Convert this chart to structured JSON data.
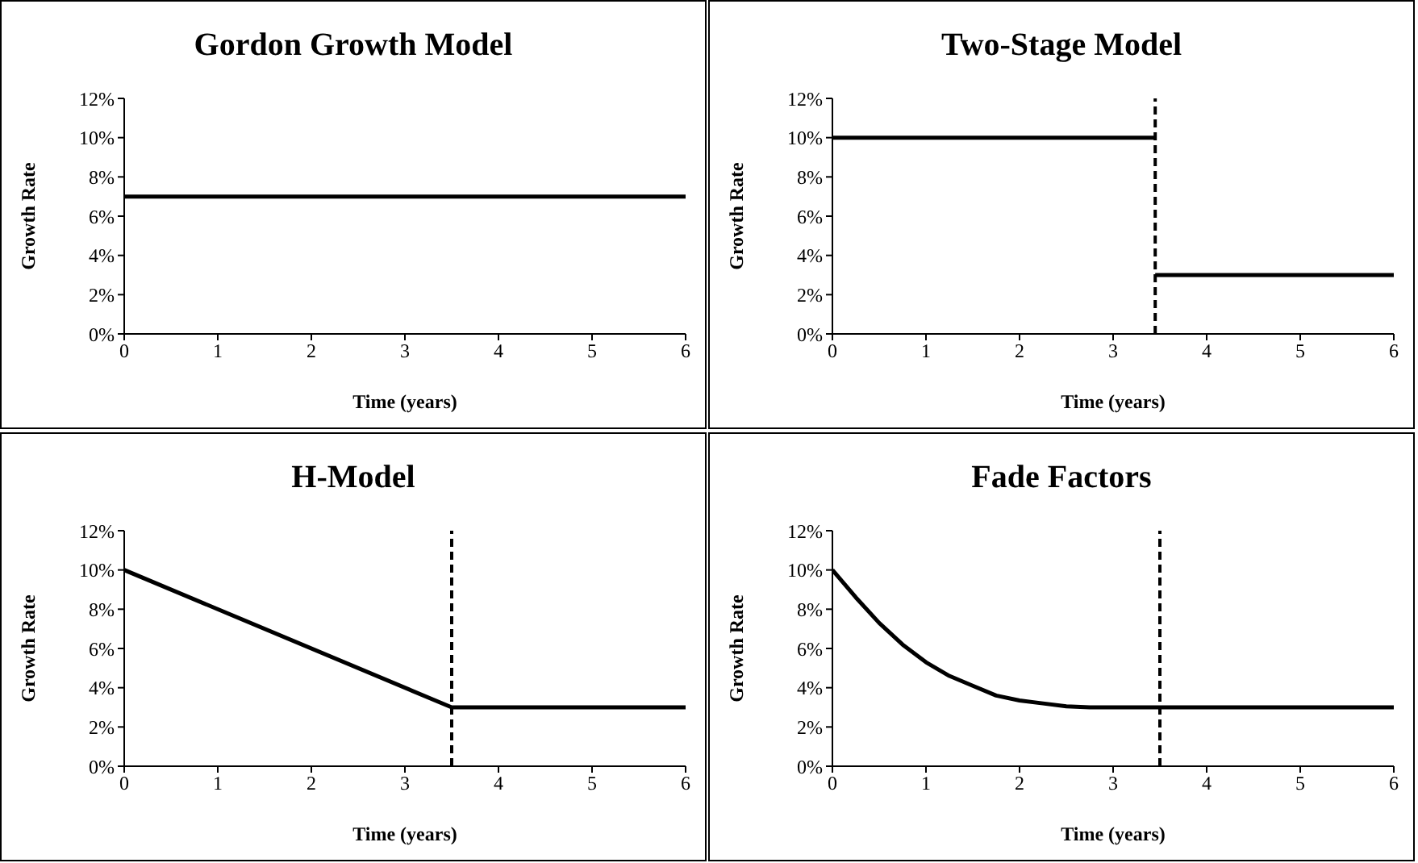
{
  "chart_data": [
    {
      "type": "line",
      "title": "Gordon Growth Model",
      "xlabel": "Time (years)",
      "ylabel": "Growth Rate",
      "xlim": [
        0,
        6
      ],
      "xticks": [
        0,
        1,
        2,
        3,
        4,
        5,
        6
      ],
      "ylim": [
        0,
        12
      ],
      "yticks": [
        {
          "value": 0,
          "label": "0%"
        },
        {
          "value": 2,
          "label": "2%"
        },
        {
          "value": 4,
          "label": "4%"
        },
        {
          "value": 6,
          "label": "6%"
        },
        {
          "value": 8,
          "label": "8%"
        },
        {
          "value": 10,
          "label": "10%"
        },
        {
          "value": 12,
          "label": "12%"
        }
      ],
      "marker": "none",
      "series": [
        {
          "color": "#000000",
          "x": [
            0,
            6
          ],
          "values": [
            7,
            7
          ]
        }
      ]
    },
    {
      "type": "line",
      "title": "Two-Stage Model",
      "xlabel": "Time (years)",
      "ylabel": "Growth Rate",
      "xlim": [
        0,
        6
      ],
      "xticks": [
        0,
        1,
        2,
        3,
        4,
        5,
        6
      ],
      "ylim": [
        0,
        12
      ],
      "yticks": [
        {
          "value": 0,
          "label": "0%"
        },
        {
          "value": 2,
          "label": "2%"
        },
        {
          "value": 4,
          "label": "4%"
        },
        {
          "value": 6,
          "label": "6%"
        },
        {
          "value": 8,
          "label": "8%"
        },
        {
          "value": 10,
          "label": "10%"
        },
        {
          "value": 12,
          "label": "12%"
        }
      ],
      "marker": "none",
      "series": [
        {
          "color": "#000000",
          "x": [
            0,
            3.45
          ],
          "values": [
            10,
            10
          ]
        },
        {
          "color": "#000000",
          "x": [
            3.45,
            6
          ],
          "values": [
            3,
            3
          ]
        }
      ],
      "ref_lines": [
        {
          "axis": "x",
          "value": 3.45,
          "color": "#000000",
          "line_style": "dashed"
        }
      ]
    },
    {
      "type": "line",
      "title": "H-Model",
      "xlabel": "Time (years)",
      "ylabel": "Growth Rate",
      "xlim": [
        0,
        6
      ],
      "xticks": [
        0,
        1,
        2,
        3,
        4,
        5,
        6
      ],
      "ylim": [
        0,
        12
      ],
      "yticks": [
        {
          "value": 0,
          "label": "0%"
        },
        {
          "value": 2,
          "label": "2%"
        },
        {
          "value": 4,
          "label": "4%"
        },
        {
          "value": 6,
          "label": "6%"
        },
        {
          "value": 8,
          "label": "8%"
        },
        {
          "value": 10,
          "label": "10%"
        },
        {
          "value": 12,
          "label": "12%"
        }
      ],
      "marker": "none",
      "series": [
        {
          "color": "#000000",
          "x": [
            0,
            3.5,
            6
          ],
          "values": [
            10,
            3,
            3
          ]
        }
      ],
      "ref_lines": [
        {
          "axis": "x",
          "value": 3.5,
          "color": "#000000",
          "line_style": "dashed"
        }
      ]
    },
    {
      "type": "line",
      "title": "Fade Factors",
      "xlabel": "Time (years)",
      "ylabel": "Growth Rate",
      "xlim": [
        0,
        6
      ],
      "xticks": [
        0,
        1,
        2,
        3,
        4,
        5,
        6
      ],
      "ylim": [
        0,
        12
      ],
      "yticks": [
        {
          "value": 0,
          "label": "0%"
        },
        {
          "value": 2,
          "label": "2%"
        },
        {
          "value": 4,
          "label": "4%"
        },
        {
          "value": 6,
          "label": "6%"
        },
        {
          "value": 8,
          "label": "8%"
        },
        {
          "value": 10,
          "label": "10%"
        },
        {
          "value": 12,
          "label": "12%"
        }
      ],
      "marker": "none",
      "series": [
        {
          "color": "#000000",
          "x": [
            0,
            0.25,
            0.5,
            0.75,
            1,
            1.25,
            1.5,
            1.75,
            2,
            2.25,
            2.5,
            2.75,
            6
          ],
          "values": [
            10,
            8.6,
            7.3,
            6.2,
            5.3,
            4.6,
            4.1,
            3.6,
            3.35,
            3.2,
            3.05,
            3,
            3
          ]
        }
      ],
      "ref_lines": [
        {
          "axis": "x",
          "value": 3.5,
          "color": "#000000",
          "line_style": "dashed"
        }
      ]
    }
  ]
}
